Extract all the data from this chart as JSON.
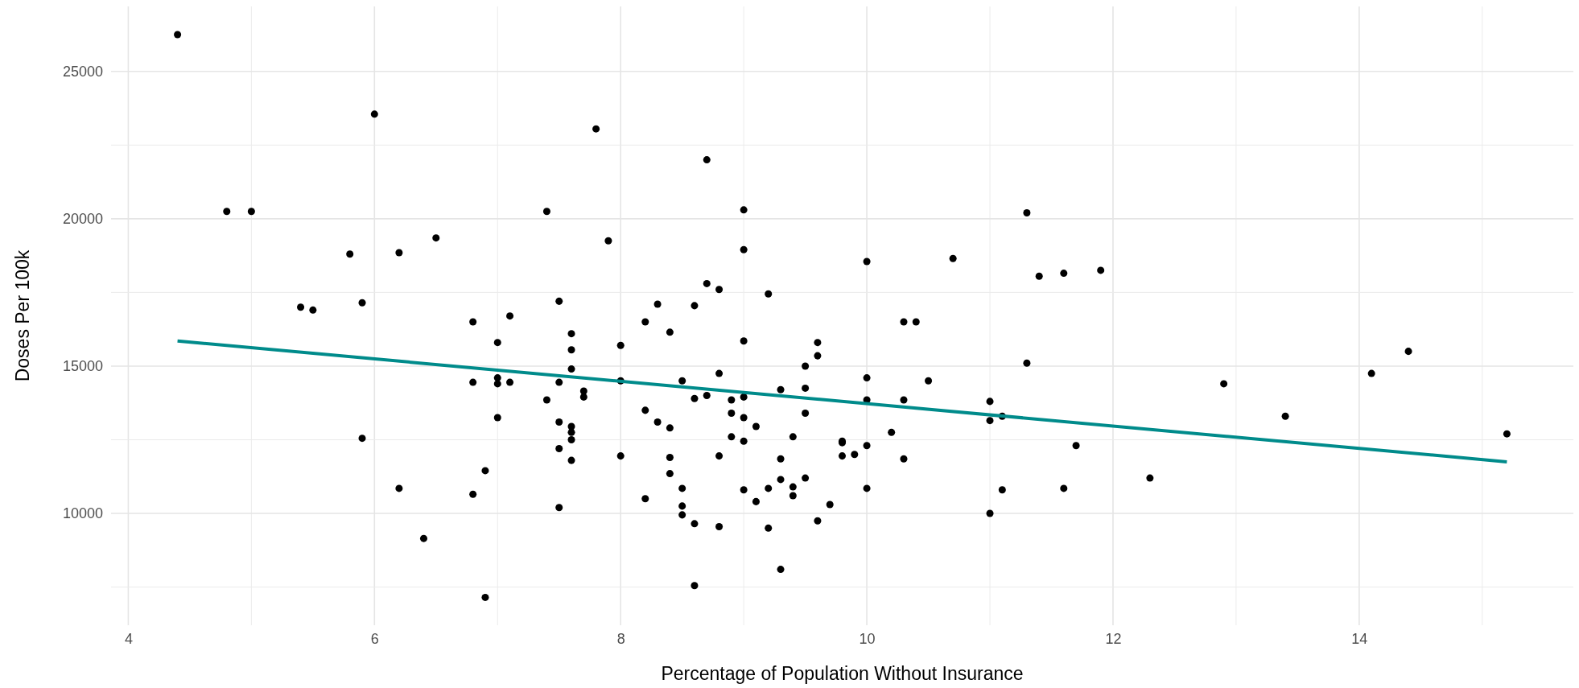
{
  "chart_data": {
    "type": "scatter",
    "xlabel": "Percentage of Population Without Insurance",
    "ylabel": "Doses Per 100k",
    "xlim": [
      3.86,
      15.74
    ],
    "ylim": [
      6205,
      27205
    ],
    "xticks": [
      4,
      6,
      8,
      10,
      12,
      14
    ],
    "yticks": [
      10000,
      15000,
      20000,
      25000
    ],
    "grid": true,
    "series": [
      {
        "marker": "circle",
        "color": "#000000",
        "x": [
          4.4,
          4.8,
          5.0,
          5.8,
          6.2,
          6.5,
          5.4,
          5.5,
          5.9,
          6.0,
          6.8,
          6.8,
          5.9,
          6.9,
          6.2,
          6.8,
          6.4,
          6.9,
          7.8,
          8.7,
          7.4,
          7.9,
          9.0,
          9.0,
          8.7,
          8.8,
          9.2,
          7.5,
          8.3,
          7.1,
          8.6,
          8.2,
          8.4,
          7.6,
          7.0,
          8.0,
          7.6,
          9.0,
          7.6,
          7.0,
          7.0,
          7.1,
          7.5,
          8.0,
          8.5,
          8.8,
          7.7,
          7.7,
          7.4,
          8.6,
          8.7,
          8.9,
          9.0,
          9.3,
          9.5,
          9.5,
          9.5,
          9.6,
          9.6,
          7.0,
          7.5,
          7.6,
          7.6,
          7.6,
          8.2,
          8.3,
          8.4,
          8.9,
          9.0,
          9.1,
          8.9,
          9.0,
          9.4,
          7.5,
          7.6,
          8.0,
          8.4,
          8.4,
          8.8,
          9.3,
          8.5,
          9.0,
          9.2,
          9.1,
          9.3,
          9.4,
          9.4,
          9.5,
          8.2,
          8.5,
          8.5,
          7.5,
          8.6,
          8.8,
          9.2,
          9.6,
          9.3,
          8.6,
          9.7,
          9.8,
          9.8,
          9.8,
          9.9,
          10.0,
          10.0,
          10.0,
          10.0,
          10.0,
          10.2,
          10.3,
          10.4,
          10.3,
          10.3,
          10.5,
          10.7,
          11.0,
          11.0,
          11.1,
          11.0,
          11.1,
          11.3,
          11.3,
          11.4,
          11.6,
          11.6,
          11.7,
          11.9,
          12.3,
          12.9,
          13.4,
          14.1,
          14.4,
          15.2
        ],
        "values": [
          26250,
          20250,
          20250,
          18800,
          18850,
          19350,
          17000,
          16900,
          17150,
          23550,
          16500,
          14450,
          12550,
          11450,
          10850,
          10650,
          9150,
          7150,
          23050,
          22000,
          20250,
          19250,
          20300,
          18950,
          17800,
          17600,
          17450,
          17200,
          17100,
          16700,
          17050,
          16500,
          16150,
          16100,
          15800,
          15700,
          15550,
          15850,
          14900,
          14600,
          14400,
          14450,
          14450,
          14500,
          14500,
          14750,
          14150,
          13950,
          13850,
          13900,
          14000,
          13850,
          13950,
          14200,
          15000,
          14250,
          13400,
          15800,
          15350,
          13250,
          13100,
          12950,
          12750,
          12500,
          13500,
          13100,
          12900,
          13400,
          13250,
          12950,
          12600,
          12450,
          12600,
          12200,
          11800,
          11950,
          11900,
          11350,
          11950,
          11850,
          10850,
          10800,
          10850,
          10400,
          11150,
          10900,
          10600,
          11200,
          10500,
          10250,
          9950,
          10200,
          9650,
          9550,
          9500,
          9750,
          8100,
          7550,
          10300,
          12450,
          12400,
          11950,
          12000,
          18550,
          14600,
          13850,
          12300,
          10850,
          12750,
          16500,
          16500,
          13850,
          11850,
          14500,
          18650,
          13800,
          13150,
          13300,
          10000,
          10800,
          20200,
          15100,
          18050,
          18150,
          10850,
          12300,
          18250,
          11200,
          14400,
          13300,
          14750,
          15500,
          12700
        ]
      },
      {
        "type": "line",
        "color": "#008b8b",
        "x": [
          4.4,
          15.2
        ],
        "values": [
          15850,
          11750
        ]
      }
    ]
  }
}
